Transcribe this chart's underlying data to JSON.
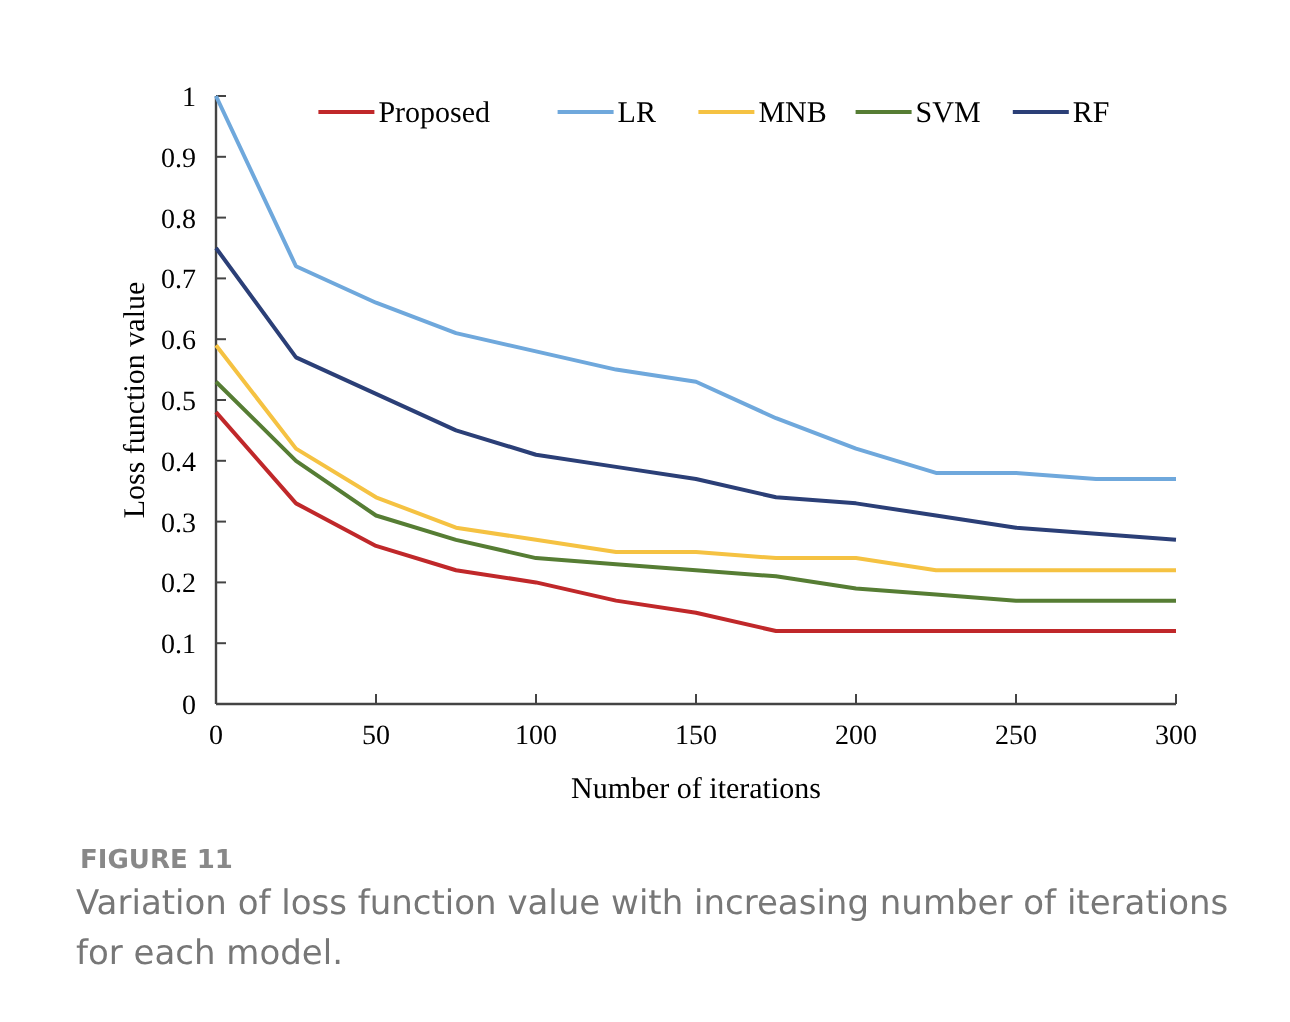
{
  "chart_data": {
    "type": "line",
    "xlabel": "Number of iterations",
    "ylabel": "Loss function value",
    "annotations": [
      "FIGURE 11",
      "Variation of loss function value with increasing number of iterations for each model."
    ],
    "x": [
      0,
      25,
      50,
      75,
      100,
      125,
      150,
      175,
      200,
      225,
      250,
      275,
      300
    ],
    "xlim": [
      0,
      300
    ],
    "xticks": [
      0,
      50,
      100,
      150,
      200,
      250,
      300
    ],
    "ylim": [
      0,
      1
    ],
    "yticks": [
      0,
      0.1,
      0.2,
      0.3,
      0.4,
      0.5,
      0.6,
      0.7,
      0.8,
      0.9,
      1
    ],
    "grid": false,
    "legend": "top",
    "marker": "none",
    "line_style": "solid",
    "series": [
      {
        "name": "Proposed",
        "color": "#c0282a",
        "values": [
          0.48,
          0.33,
          0.26,
          0.22,
          0.2,
          0.17,
          0.15,
          0.12,
          0.12,
          0.12,
          0.12,
          0.12,
          0.12
        ]
      },
      {
        "name": "LR",
        "color": "#6fa8dc",
        "values": [
          1.0,
          0.72,
          0.66,
          0.61,
          0.58,
          0.55,
          0.53,
          0.47,
          0.42,
          0.38,
          0.38,
          0.37,
          0.37
        ]
      },
      {
        "name": "MNB",
        "color": "#f5c242",
        "values": [
          0.59,
          0.42,
          0.34,
          0.29,
          0.27,
          0.25,
          0.25,
          0.24,
          0.24,
          0.22,
          0.22,
          0.22,
          0.22
        ]
      },
      {
        "name": "SVM",
        "color": "#567d34",
        "values": [
          0.53,
          0.4,
          0.31,
          0.27,
          0.24,
          0.23,
          0.22,
          0.21,
          0.19,
          0.18,
          0.17,
          0.17,
          0.17
        ]
      },
      {
        "name": "RF",
        "color": "#2b3f77",
        "values": [
          0.75,
          0.57,
          0.51,
          0.45,
          0.41,
          0.39,
          0.37,
          0.34,
          0.33,
          0.31,
          0.29,
          0.28,
          0.27
        ]
      }
    ]
  }
}
